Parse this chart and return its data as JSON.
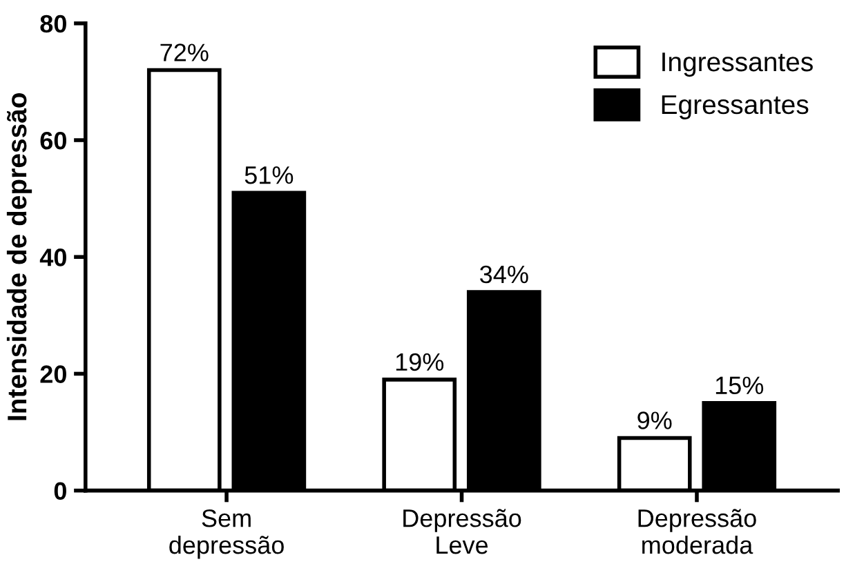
{
  "chart_data": {
    "type": "bar",
    "ylabel": "Intensidade de depressão",
    "categories": [
      "Sem\ndepressão",
      "Depressão\nLeve",
      "Depressão\nmoderada"
    ],
    "series": [
      {
        "name": "Ingressantes",
        "color": "#ffffff",
        "values": [
          72,
          19,
          9
        ],
        "value_labels": [
          "72%",
          "19%",
          "9%"
        ]
      },
      {
        "name": "Egressantes",
        "color": "#000000",
        "values": [
          51,
          34,
          15
        ],
        "value_labels": [
          "51%",
          "34%",
          "15%"
        ]
      }
    ],
    "ylim": [
      0,
      80
    ],
    "yticks": [
      0,
      20,
      40,
      60,
      80
    ],
    "grid": false,
    "legend": "top right"
  }
}
